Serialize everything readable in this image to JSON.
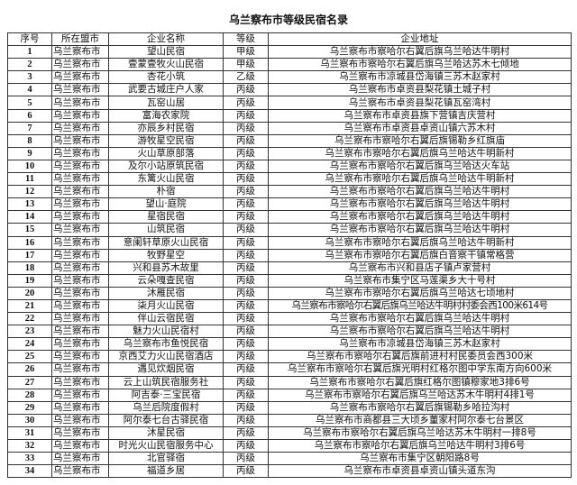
{
  "title": "乌兰察布市等级民宿名录",
  "headers": [
    "序号",
    "所在盟市",
    "企业名称",
    "等级",
    "企业地址"
  ],
  "rows": [
    [
      "1",
      "乌兰察布市",
      "望山民宿",
      "甲级",
      "乌兰察布市察哈尔右翼后旗乌兰哈达牛明村"
    ],
    [
      "2",
      "乌兰察布市",
      "壹蒙壹牧火山民宿",
      "甲级",
      "乌兰察布市察哈尔右翼后旗乌兰哈达苏木七倾地"
    ],
    [
      "3",
      "乌兰察布市",
      "杏花小筑",
      "乙级",
      "乌兰察布市凉城县岱海镇三苏木赵家村"
    ],
    [
      "4",
      "乌兰察布市",
      "武要古城庄户人家",
      "丙级",
      "乌兰察布市卓资县梨花镇土城子村"
    ],
    [
      "5",
      "乌兰察布市",
      "瓦窑山居",
      "丙级",
      "乌兰察布市卓资县梨花镇瓦窑湾村"
    ],
    [
      "6",
      "乌兰察布市",
      "富海农家院",
      "丙级",
      "乌兰察布市卓资县旗下营镇吉庆营村"
    ],
    [
      "7",
      "乌兰察布市",
      "亦辰乡村民宿",
      "丙级",
      "乌兰察布市卓资县卓资山镇六苏木村"
    ],
    [
      "8",
      "乌兰察布市",
      "游牧星空民宿",
      "丙级",
      "乌兰察布市察哈尔右翼后旗锡勒乡红旗庙"
    ],
    [
      "9",
      "乌兰察布市",
      "火山草原部落",
      "丙级",
      "乌兰察布市察哈尔右翼后旗乌兰哈达牛明新村"
    ],
    [
      "10",
      "乌兰察布市",
      "及尔小站原筑民宿",
      "丙级",
      "乌兰察布市察哈尔右翼后旗乌兰哈达火车站"
    ],
    [
      "11",
      "乌兰察布市",
      "东篱火山民宿",
      "丙级",
      "乌兰察布市察哈尔右翼后旗乌兰哈达牛明新村"
    ],
    [
      "12",
      "乌兰察布市",
      "朴宿",
      "丙级",
      "乌兰察布市察哈尔右翼后旗乌兰哈达牛明村"
    ],
    [
      "13",
      "乌兰察布市",
      "望山·庭院",
      "丙级",
      "乌兰察布市察哈尔右翼后旗乌兰哈达牛明村"
    ],
    [
      "14",
      "乌兰察布市",
      "星宿民宿",
      "丙级",
      "乌兰察布市察哈尔右翼后旗乌兰哈达牛明村"
    ],
    [
      "15",
      "乌兰察布市",
      "山筑民宿",
      "丙级",
      "乌兰察布市察哈尔右翼后旗乌兰哈达牛明村"
    ],
    [
      "16",
      "乌兰察布市",
      "意阑轩草原火山民宿",
      "丙级",
      "乌兰察布市察哈尔右翼后旗乌兰哈达牛明新村"
    ],
    [
      "17",
      "乌兰察布市",
      "牧野星空",
      "丙级",
      "乌兰察布市察哈尔右翼后旗白音察干镇常格营"
    ],
    [
      "18",
      "乌兰察布市",
      "兴和县苏木故里",
      "丙级",
      "乌兰察布市兴和县店子镇卢家营村"
    ],
    [
      "19",
      "乌兰察布市",
      "云朵嘎查民宿",
      "丙级",
      "乌兰察布市集宁区马莲渠乡大十号村"
    ],
    [
      "20",
      "乌兰察布市",
      "沐雁民宿",
      "丙级",
      "乌兰察布市察哈尔右翼后旗乌兰哈达七顷地村"
    ],
    [
      "21",
      "乌兰察布市",
      "柒月火山民宿",
      "丙级",
      "乌兰察布市察哈尔右翼后旗乌兰哈达牛明村村委会西100米614号"
    ],
    [
      "22",
      "乌兰察布市",
      "伴山云宿民宿",
      "丙级",
      "乌兰察布市察哈尔右翼后旗乌兰哈达牛明村"
    ],
    [
      "23",
      "乌兰察布市",
      "魅力火山民宿村",
      "丙级",
      "乌兰察布市察哈尔右翼后旗乌兰哈达牛明村"
    ],
    [
      "24",
      "乌兰察布市",
      "乌兰察布市鱼悦民宿",
      "丙级",
      "乌兰察布市凉城县岱海镇三苏木赵家村"
    ],
    [
      "25",
      "乌兰察布市",
      "京西艾力火山民宿酒店",
      "丙级",
      "乌兰察布市察哈尔右翼后旗前进村村民委员会西300米"
    ],
    [
      "26",
      "乌兰察布市",
      "遇见炊烟民宿",
      "丙级",
      "乌兰察布市察哈尔右翼后旗光明村红格尔图中学东南方向600米"
    ],
    [
      "27",
      "乌兰察布市",
      "云上山筑民宿服务社",
      "丙级",
      "乌兰察布市察哈尔右翼后旗红格尔图镇穆家地3排6号"
    ],
    [
      "28",
      "乌兰察布市",
      "阿吉泰·三宝民宿",
      "丙级",
      "乌兰察布市察哈尔右翼后旗乌兰哈达苏木牛明村4排1号"
    ],
    [
      "29",
      "乌兰察布市",
      "乌兰后院度假村",
      "丙级",
      "乌兰察布市察哈尔右翼后旗锡勒乡哈拉沟村"
    ],
    [
      "30",
      "乌兰察布市",
      "阿尔泰七台古驿民宿",
      "丙级",
      "乌兰察布市商都县三大顷乡董家村阿尔泰七台景区"
    ],
    [
      "31",
      "乌兰察布市",
      "沐星民宿",
      "丙级",
      "乌兰察布市察哈尔右翼后旗乌兰哈达苏木牛明村一排8号"
    ],
    [
      "32",
      "乌兰察布市",
      "时光火山民宿服务中心",
      "丙级",
      "乌兰察布市察哈尔右翼后旗乌兰哈达牛明村3排6号"
    ],
    [
      "33",
      "乌兰察布市",
      "北官驿宿",
      "丙级",
      "乌兰察布市集宁区朝阳路8号"
    ],
    [
      "34",
      "乌兰察布市",
      "福道乡居",
      "丙级",
      "乌兰察布市卓资县卓资山镇头道东沟"
    ]
  ]
}
